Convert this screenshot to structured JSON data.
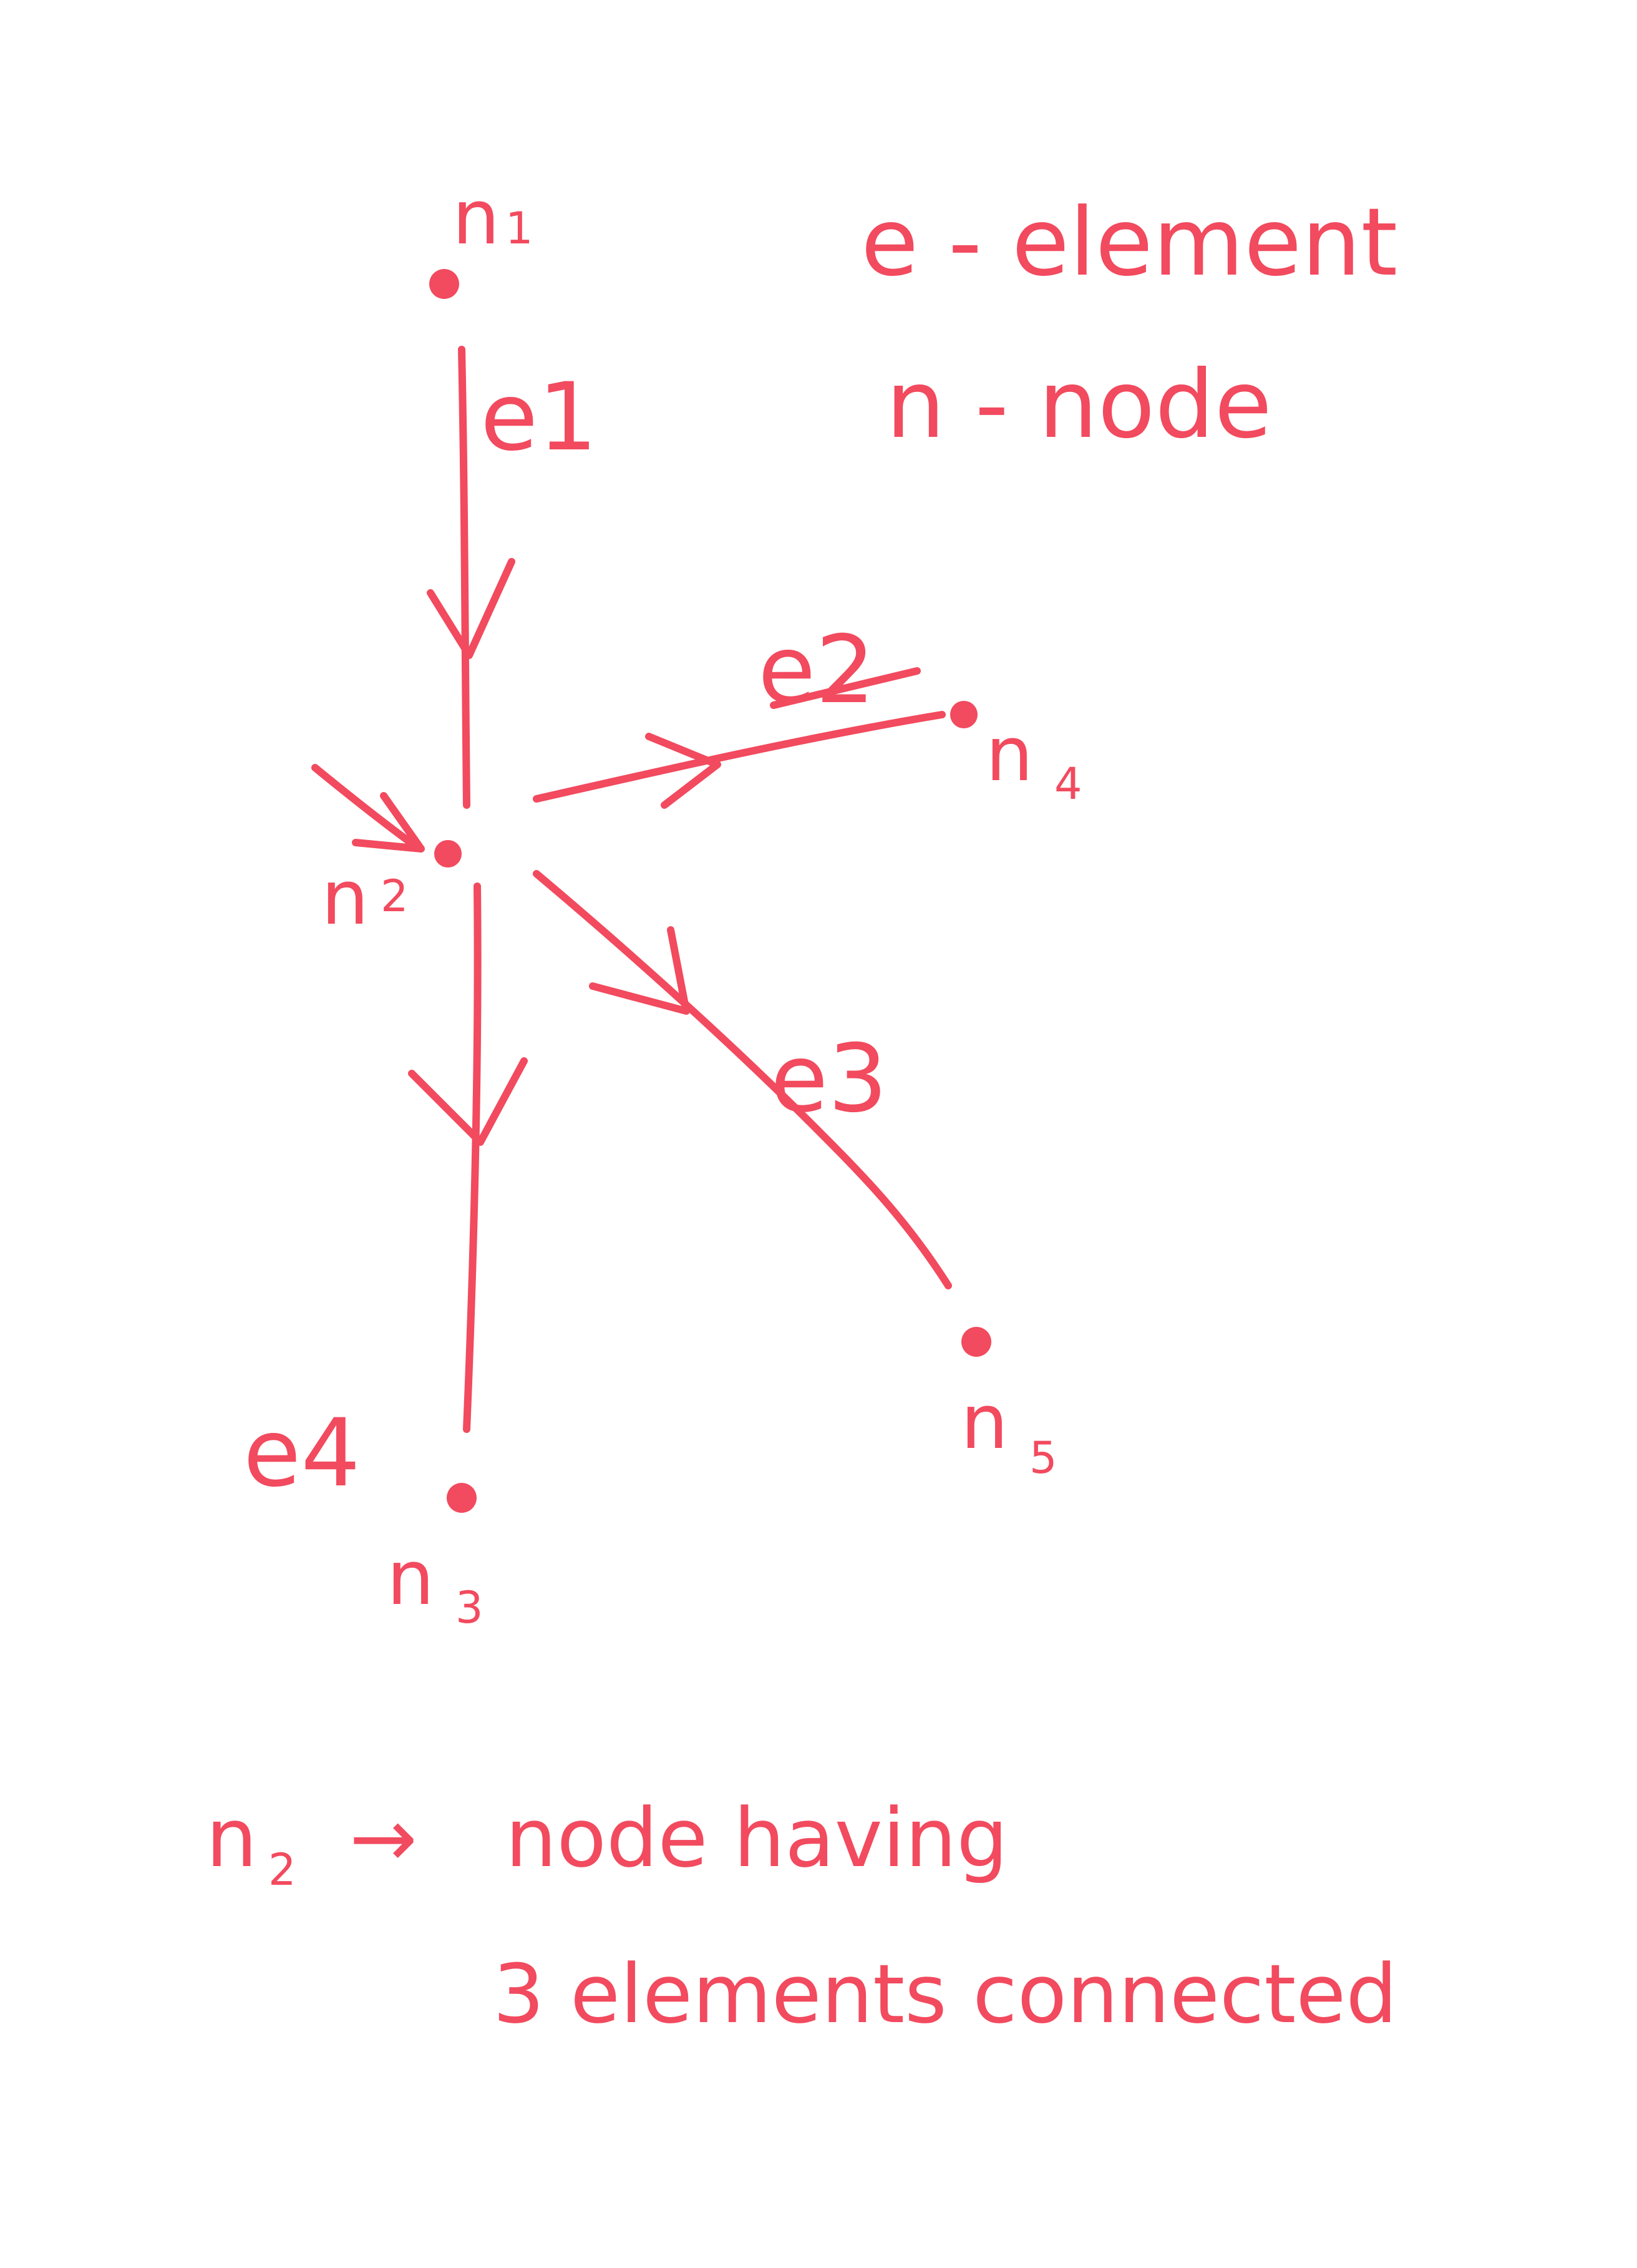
{
  "diagram": {
    "ink_color": "#f24a5e",
    "legend": {
      "element": "e - element",
      "node": "n - node"
    },
    "nodes": {
      "n1": {
        "name": "n",
        "sub": "1"
      },
      "n2": {
        "name": "n",
        "sub": "2"
      },
      "n3": {
        "name": "n",
        "sub": "3"
      },
      "n4": {
        "name": "n",
        "sub": "4"
      },
      "n5": {
        "name": "n",
        "sub": "5"
      }
    },
    "edges": {
      "e1": "e1",
      "e2": "e2",
      "e3": "e3",
      "e4": "e4"
    },
    "note": {
      "subject": "n",
      "subject_sub": "2",
      "arrow": "→",
      "line1": "node having",
      "line2": "3 elements connected"
    }
  }
}
